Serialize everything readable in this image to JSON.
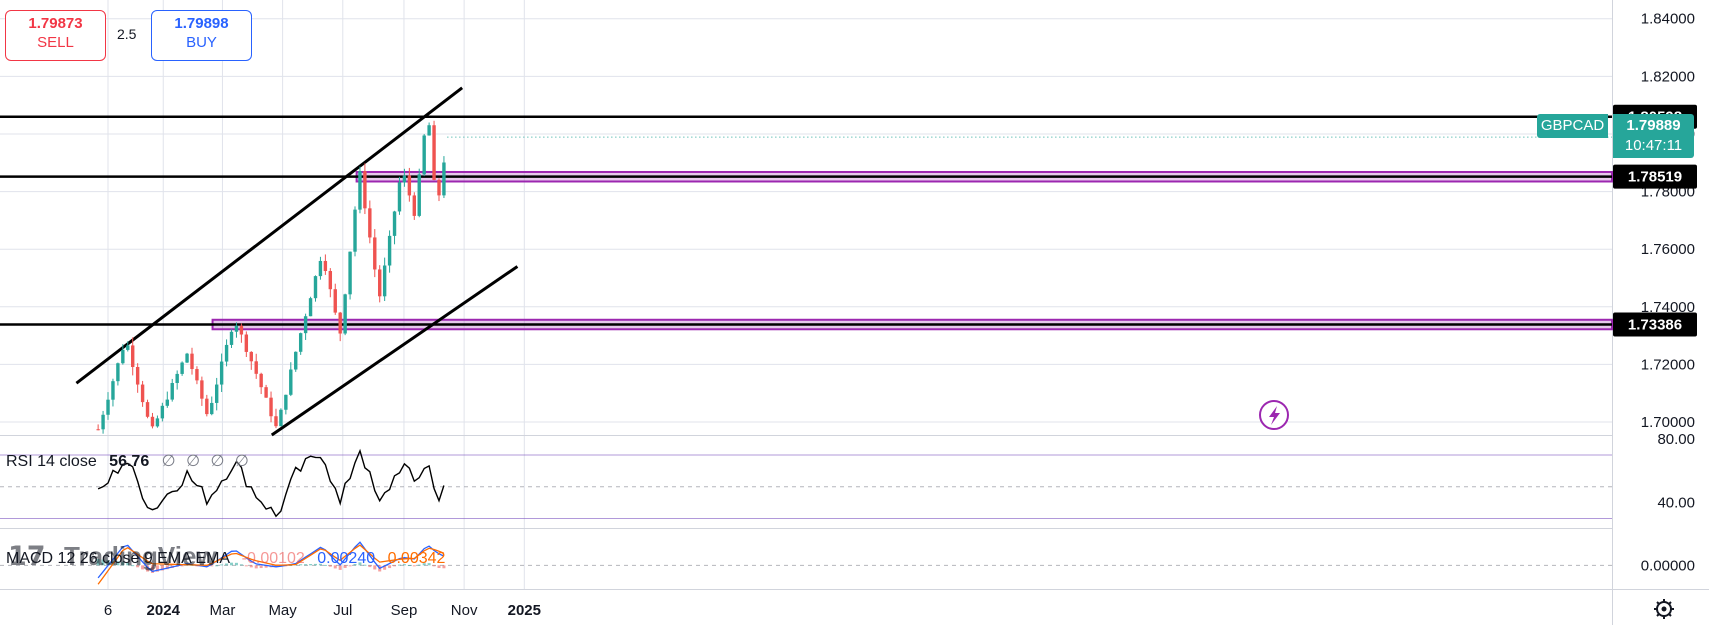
{
  "widget": {
    "sell_price": "1.79873",
    "sell_label": "SELL",
    "spread": "2.5",
    "buy_price": "1.79898",
    "buy_label": "BUY",
    "symbol": "GBPCAD",
    "last_price": "1.79889",
    "countdown": "10:47:11",
    "brand": "TradingView"
  },
  "colors": {
    "up": "#26a69a",
    "down": "#ef5350",
    "zone": "#9c27b0",
    "rsi_band": "#7e57c2",
    "macd": "#2962ff",
    "signal": "#ff6d00"
  },
  "chart_data": [
    {
      "type": "candlestick",
      "symbol": "GBPCAD",
      "y_ticks": [
        "1.84000",
        "1.82000",
        "1.80000",
        "1.78000",
        "1.76000",
        "1.74000",
        "1.72000",
        "1.70000"
      ],
      "x_ticks": [
        "6",
        "2024",
        "Mar",
        "May",
        "Jul",
        "Sep",
        "Nov",
        "2025"
      ],
      "ylim": [
        1.6955,
        1.8465
      ],
      "horizontal_levels": [
        {
          "price": 1.80598,
          "label": "1.80598"
        },
        {
          "price": 1.78519,
          "label": "1.78519"
        },
        {
          "price": 1.73386,
          "label": "1.73386"
        }
      ],
      "zones": [
        {
          "from": "2024-07-15",
          "low": 1.7835,
          "high": 1.7868
        },
        {
          "from": "2024-02-20",
          "low": 1.7322,
          "high": 1.7355
        }
      ],
      "channel_upper": [
        {
          "t": "2023-10-05",
          "price": 1.7135
        },
        {
          "t": "2024-10-30",
          "price": 1.816
        }
      ],
      "channel_lower": [
        {
          "t": "2024-04-20",
          "price": 1.6955
        },
        {
          "t": "2024-12-25",
          "price": 1.754
        }
      ],
      "anchors": [
        {
          "t": "2023-10-27",
          "price": 1.6975
        },
        {
          "t": "2023-11-24",
          "price": 1.729
        },
        {
          "t": "2023-12-20",
          "price": 1.6965
        },
        {
          "t": "2024-01-25",
          "price": 1.724
        },
        {
          "t": "2024-02-15",
          "price": 1.702
        },
        {
          "t": "2024-03-13",
          "price": 1.736
        },
        {
          "t": "2024-04-03",
          "price": 1.718
        },
        {
          "t": "2024-04-25",
          "price": 1.6975
        },
        {
          "t": "2024-05-14",
          "price": 1.724
        },
        {
          "t": "2024-06-10",
          "price": 1.759
        },
        {
          "t": "2024-06-28",
          "price": 1.73
        },
        {
          "t": "2024-07-18",
          "price": 1.787
        },
        {
          "t": "2024-08-07",
          "price": 1.743
        },
        {
          "t": "2024-08-30",
          "price": 1.788
        },
        {
          "t": "2024-09-12",
          "price": 1.772
        },
        {
          "t": "2024-09-25",
          "price": 1.809
        },
        {
          "t": "2024-10-04",
          "price": 1.773
        },
        {
          "t": "2024-10-15",
          "price": 1.7989
        }
      ]
    },
    {
      "type": "line",
      "indicator": "RSI",
      "label": "RSI 14 close",
      "value": "56.76",
      "placeholders": [
        "∅",
        "∅",
        "∅",
        "∅"
      ],
      "y_ticks": [
        "80.00",
        "40.00"
      ],
      "bands": [
        70,
        50,
        30
      ],
      "ylim": [
        24,
        82
      ],
      "anchors": [
        {
          "t": "2023-10-27",
          "v": 45
        },
        {
          "t": "2023-11-24",
          "v": 68
        },
        {
          "t": "2023-12-20",
          "v": 35
        },
        {
          "t": "2024-01-25",
          "v": 58
        },
        {
          "t": "2024-02-15",
          "v": 42
        },
        {
          "t": "2024-03-13",
          "v": 66
        },
        {
          "t": "2024-04-03",
          "v": 46
        },
        {
          "t": "2024-04-25",
          "v": 31
        },
        {
          "t": "2024-05-14",
          "v": 58
        },
        {
          "t": "2024-06-10",
          "v": 73
        },
        {
          "t": "2024-06-28",
          "v": 38
        },
        {
          "t": "2024-07-18",
          "v": 75
        },
        {
          "t": "2024-08-07",
          "v": 38
        },
        {
          "t": "2024-08-30",
          "v": 65
        },
        {
          "t": "2024-09-12",
          "v": 52
        },
        {
          "t": "2024-09-25",
          "v": 67
        },
        {
          "t": "2024-10-04",
          "v": 41
        },
        {
          "t": "2024-10-15",
          "v": 56.76
        }
      ]
    },
    {
      "type": "line",
      "indicator": "MACD",
      "label": "MACD 12 26 close 9 EMA EMA",
      "histogram_value": "-0.00102",
      "macd_value": "0.00240",
      "signal_value": "0.00342",
      "y_ticks": [
        "0.00000"
      ],
      "ylim": [
        -0.0075,
        0.0115
      ],
      "macd_anchors": [
        {
          "t": "2023-10-27",
          "v": -0.004
        },
        {
          "t": "2023-11-24",
          "v": 0.007
        },
        {
          "t": "2023-12-20",
          "v": -0.002
        },
        {
          "t": "2024-01-25",
          "v": 0.0005
        },
        {
          "t": "2024-02-15",
          "v": -0.0005
        },
        {
          "t": "2024-03-13",
          "v": 0.005
        },
        {
          "t": "2024-04-03",
          "v": 0.0005
        },
        {
          "t": "2024-04-25",
          "v": -0.0005
        },
        {
          "t": "2024-05-14",
          "v": 0.0005
        },
        {
          "t": "2024-06-10",
          "v": 0.006
        },
        {
          "t": "2024-06-28",
          "v": 0.0
        },
        {
          "t": "2024-07-18",
          "v": 0.0075
        },
        {
          "t": "2024-08-07",
          "v": -0.001
        },
        {
          "t": "2024-08-30",
          "v": 0.0025
        },
        {
          "t": "2024-09-12",
          "v": 0.002
        },
        {
          "t": "2024-09-25",
          "v": 0.0065
        },
        {
          "t": "2024-10-04",
          "v": 0.004
        },
        {
          "t": "2024-10-15",
          "v": 0.0024
        }
      ],
      "signal_anchors": [
        {
          "t": "2023-10-27",
          "v": -0.006
        },
        {
          "t": "2023-11-24",
          "v": 0.006
        },
        {
          "t": "2023-12-20",
          "v": 0.0005
        },
        {
          "t": "2024-01-25",
          "v": 0.0002
        },
        {
          "t": "2024-02-15",
          "v": 0.0
        },
        {
          "t": "2024-03-13",
          "v": 0.004
        },
        {
          "t": "2024-04-03",
          "v": 0.0015
        },
        {
          "t": "2024-04-25",
          "v": 0.0
        },
        {
          "t": "2024-05-14",
          "v": 0.0002
        },
        {
          "t": "2024-06-10",
          "v": 0.0055
        },
        {
          "t": "2024-06-28",
          "v": 0.0015
        },
        {
          "t": "2024-07-18",
          "v": 0.0065
        },
        {
          "t": "2024-08-07",
          "v": 0.001
        },
        {
          "t": "2024-08-30",
          "v": 0.002
        },
        {
          "t": "2024-09-12",
          "v": 0.0022
        },
        {
          "t": "2024-09-25",
          "v": 0.0055
        },
        {
          "t": "2024-10-04",
          "v": 0.0048
        },
        {
          "t": "2024-10-15",
          "v": 0.0034
        }
      ]
    }
  ]
}
